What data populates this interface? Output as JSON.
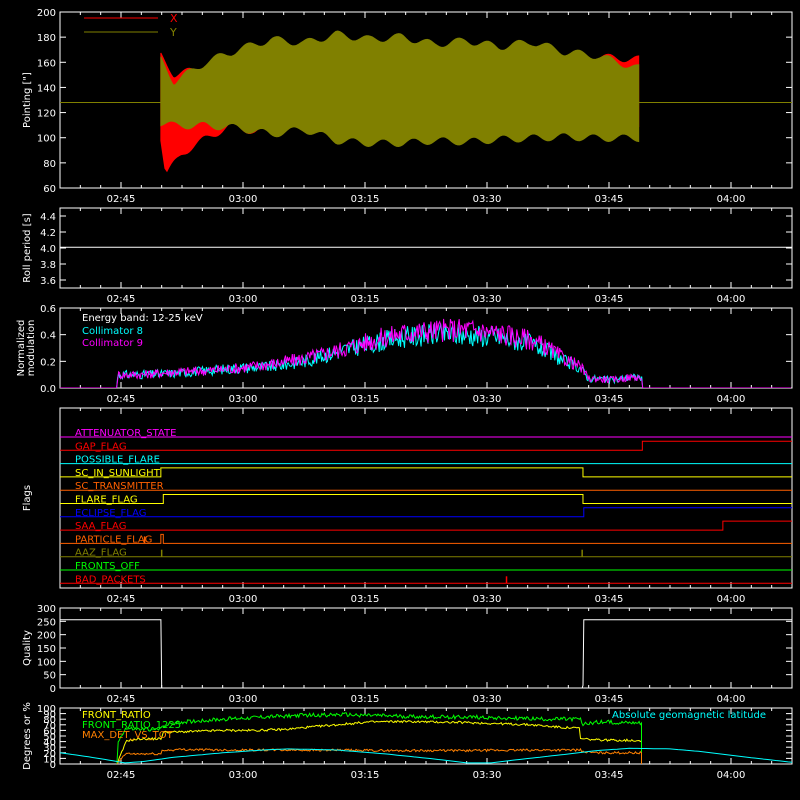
{
  "chart_data": [
    {
      "id": "pointing",
      "type": "area",
      "ylabel": "Pointing [\"]",
      "ylim": [
        60,
        200
      ],
      "yticks": [
        60,
        80,
        100,
        120,
        140,
        160,
        180,
        200
      ],
      "xlim_minutes": [
        0,
        90
      ],
      "xticks": [
        "02:45",
        "03:00",
        "03:15",
        "03:30",
        "03:45",
        "04:00"
      ],
      "legend_position": "top-left",
      "reference_level": 128,
      "series": [
        {
          "name": "X",
          "color": "#ff0000",
          "band_time": [
            "02:48",
            "03:49"
          ],
          "upper": [
            [
              12.4,
              165
            ],
            [
              14,
              150
            ],
            [
              18,
              155
            ],
            [
              22,
              168
            ],
            [
              27,
              162
            ],
            [
              32,
              160
            ],
            [
              38,
              158
            ],
            [
              42,
              165
            ],
            [
              48,
              167
            ],
            [
              52,
              163
            ],
            [
              58,
              165
            ],
            [
              62,
              162
            ],
            [
              66,
              164
            ],
            [
              71,
              162
            ]
          ],
          "lower": [
            [
              12.4,
              100
            ],
            [
              13,
              71
            ],
            [
              15,
              88
            ],
            [
              18,
              100
            ],
            [
              21,
              110
            ],
            [
              24,
              105
            ],
            [
              30,
              110
            ],
            [
              37,
              108
            ],
            [
              42,
              112
            ],
            [
              48,
              112
            ],
            [
              55,
              110
            ],
            [
              62,
              110
            ],
            [
              71,
              112
            ]
          ]
        },
        {
          "name": "Y",
          "color": "#808000",
          "band_time": [
            "02:48",
            "03:49"
          ],
          "upper": [
            [
              12.4,
              162
            ],
            [
              14,
              144
            ],
            [
              18,
              160
            ],
            [
              22,
              170
            ],
            [
              26,
              178
            ],
            [
              30,
              175
            ],
            [
              34,
              182
            ],
            [
              38,
              178
            ],
            [
              42,
              180
            ],
            [
              46,
              174
            ],
            [
              50,
              177
            ],
            [
              54,
              172
            ],
            [
              58,
              176
            ],
            [
              62,
              168
            ],
            [
              66,
              165
            ],
            [
              71,
              155
            ]
          ],
          "lower": [
            [
              12.4,
              112
            ],
            [
              14,
              110
            ],
            [
              18,
              110
            ],
            [
              22,
              108
            ],
            [
              26,
              103
            ],
            [
              30,
              107
            ],
            [
              34,
              98
            ],
            [
              38,
              96
            ],
            [
              42,
              96
            ],
            [
              46,
              98
            ],
            [
              50,
              97
            ],
            [
              54,
              99
            ],
            [
              58,
              100
            ],
            [
              62,
              101
            ],
            [
              66,
              100
            ],
            [
              71,
              100
            ]
          ]
        }
      ]
    },
    {
      "id": "roll",
      "type": "line",
      "ylabel": "Roll period [s]",
      "ylim": [
        3.5,
        4.5
      ],
      "yticks": [
        3.6,
        3.8,
        4.0,
        4.2,
        4.4
      ],
      "xlim_minutes": [
        0,
        90
      ],
      "xticks": [
        "02:45",
        "03:00",
        "03:15",
        "03:30",
        "03:45",
        "04:00"
      ],
      "series": [
        {
          "color": "#ffffff",
          "x": [
            0,
            90
          ],
          "y": [
            4.01,
            4.01
          ]
        }
      ]
    },
    {
      "id": "modulation",
      "type": "line",
      "ylabel": [
        "Normalized",
        "modulation"
      ],
      "ylim": [
        0,
        0.6
      ],
      "yticks": [
        0.0,
        0.2,
        0.4,
        0.6
      ],
      "xlim_minutes": [
        0,
        90
      ],
      "xticks": [
        "02:45",
        "03:00",
        "03:15",
        "03:30",
        "03:45",
        "04:00"
      ],
      "annotations": [
        "Energy band: 12-25 keV"
      ],
      "series": [
        {
          "name": "Collimator 8",
          "color": "#00ffff",
          "x": [
            0,
            7,
            7.1,
            10,
            14,
            18,
            22,
            26,
            30,
            34,
            38,
            42,
            46,
            50,
            54,
            58,
            60,
            62,
            64,
            65,
            66,
            68,
            70,
            71.5,
            71.6,
            90
          ],
          "y": [
            0,
            0,
            0.1,
            0.1,
            0.11,
            0.13,
            0.15,
            0.16,
            0.2,
            0.27,
            0.33,
            0.38,
            0.4,
            0.4,
            0.38,
            0.33,
            0.27,
            0.2,
            0.15,
            0.07,
            0.07,
            0.06,
            0.08,
            0.08,
            0,
            0
          ]
        },
        {
          "name": "Collimator 9",
          "color": "#ff00ff",
          "x": [
            0,
            7,
            7.1,
            10,
            14,
            18,
            22,
            26,
            30,
            34,
            38,
            42,
            46,
            50,
            54,
            58,
            60,
            62,
            64,
            65,
            66,
            68,
            70,
            71.5,
            71.6,
            90
          ],
          "y": [
            0,
            0,
            0.1,
            0.1,
            0.12,
            0.13,
            0.15,
            0.18,
            0.22,
            0.28,
            0.35,
            0.41,
            0.43,
            0.44,
            0.41,
            0.36,
            0.3,
            0.22,
            0.16,
            0.07,
            0.07,
            0.06,
            0.08,
            0.08,
            0,
            0
          ]
        }
      ]
    },
    {
      "id": "flags",
      "type": "line",
      "ylabel": "Flags",
      "xlim_minutes": [
        0,
        90
      ],
      "xticks": [
        "02:45",
        "03:00",
        "03:15",
        "03:30",
        "03:45",
        "04:00"
      ],
      "flags": [
        {
          "name": "ATTENUATOR_STATE",
          "color": "#ff00ff",
          "steps": []
        },
        {
          "name": "GAP_FLAG",
          "color": "#ff0000",
          "steps": [
            [
              71.6,
              1
            ]
          ]
        },
        {
          "name": "POSSIBLE_FLARE",
          "color": "#00ffff",
          "steps": []
        },
        {
          "name": "SC_IN_SUNLIGHT",
          "color": "#ffff00",
          "steps": [
            [
              12.4,
              1
            ],
            [
              64.3,
              0
            ]
          ]
        },
        {
          "name": "SC_TRANSMITTER",
          "color": "#ff6000",
          "steps": []
        },
        {
          "name": "FLARE_FLAG",
          "color": "#ffff00",
          "steps": [
            [
              12.7,
              1
            ],
            [
              64.3,
              0
            ]
          ]
        },
        {
          "name": "ECLIPSE_FLAG",
          "color": "#0000ff",
          "steps": [
            [
              12.4,
              0
            ],
            [
              64.4,
              1
            ]
          ]
        },
        {
          "name": "SAA_FLAG",
          "color": "#ff0000",
          "steps": [
            [
              81.5,
              1
            ]
          ]
        },
        {
          "name": "PARTICLE_FLAG",
          "color": "#ff6000",
          "steps": [
            [
              12.4,
              1
            ],
            [
              12.7,
              0
            ]
          ],
          "spikes": [
            10.4
          ]
        },
        {
          "name": "AAZ_FLAG",
          "color": "#808000",
          "steps": [],
          "spikes": [
            12.5,
            64.2
          ]
        },
        {
          "name": "FRONTS_OFF",
          "color": "#00ff00",
          "steps": []
        },
        {
          "name": "BAD_PACKETS",
          "color": "#ff0000",
          "steps": [],
          "spikes": [
            54.9
          ]
        }
      ]
    },
    {
      "id": "quality",
      "type": "line",
      "ylabel": "Quality",
      "ylim": [
        0,
        300
      ],
      "yticks": [
        0,
        50,
        100,
        150,
        200,
        250,
        300
      ],
      "xlim_minutes": [
        0,
        90
      ],
      "xticks": [
        "02:45",
        "03:00",
        "03:15",
        "03:30",
        "03:45",
        "04:00"
      ],
      "series": [
        {
          "color": "#ffffff",
          "x": [
            0,
            12.4,
            12.5,
            64.2,
            64.3,
            64.4,
            90
          ],
          "y": [
            256,
            256,
            0,
            0,
            10,
            256,
            256
          ]
        }
      ]
    },
    {
      "id": "ratios",
      "type": "line",
      "ylabel": "Degrees or %",
      "ylim": [
        0,
        100
      ],
      "yticks": [
        0,
        10,
        20,
        30,
        40,
        50,
        60,
        70,
        80,
        90,
        100
      ],
      "xlim_minutes": [
        0,
        90
      ],
      "xticks": [
        "02:45",
        "03:00",
        "03:15",
        "03:30",
        "03:45",
        "04:00"
      ],
      "series": [
        {
          "name": "FRONT_RATIO",
          "color": "#ffff00",
          "x": [
            7,
            8.2,
            8.3,
            10,
            12.5,
            12.6,
            14,
            20,
            24,
            28,
            30,
            34,
            38,
            42,
            46,
            50,
            54,
            58,
            62,
            63.9,
            64,
            66,
            71.5
          ],
          "y": [
            0,
            42,
            42,
            45,
            45,
            57,
            57,
            60,
            60,
            62,
            65,
            70,
            75,
            76,
            75,
            74,
            72,
            70,
            65,
            64,
            45,
            43,
            42
          ]
        },
        {
          "name": "FRONT_RATIO_1225",
          "color": "#00ff00",
          "x": [
            7,
            7.1,
            8,
            10,
            12.4,
            12.5,
            15,
            20,
            25,
            30,
            35,
            40,
            45,
            50,
            55,
            60,
            64,
            64.1,
            66,
            71.5
          ],
          "y": [
            0,
            38,
            63,
            62,
            62,
            68,
            75,
            80,
            84,
            87,
            88,
            86,
            84,
            84,
            82,
            80,
            80,
            70,
            75,
            74
          ]
        },
        {
          "name": "MAX_DET_VS_TOT",
          "color": "#ff8000",
          "x": [
            7,
            8.2,
            8.3,
            10,
            12.4,
            12.5,
            15,
            20,
            30,
            40,
            50,
            60,
            64,
            64.1,
            66,
            71.5
          ],
          "y": [
            0,
            20,
            18,
            18,
            18,
            24,
            26,
            25,
            25,
            24,
            24,
            25,
            25,
            22,
            20,
            20
          ]
        },
        {
          "name": "Absolute geomagnetic latitude",
          "color": "#00ffff",
          "x": [
            0,
            3,
            6,
            8,
            10,
            14,
            20,
            25,
            28,
            34,
            40,
            46,
            50,
            53,
            57,
            62,
            66,
            70,
            75,
            79,
            84,
            90
          ],
          "y": [
            20,
            14,
            7,
            2,
            4,
            12,
            20,
            25,
            27,
            25,
            18,
            9,
            2,
            2,
            9,
            17,
            24,
            28,
            27,
            22,
            13,
            3
          ]
        }
      ]
    }
  ]
}
